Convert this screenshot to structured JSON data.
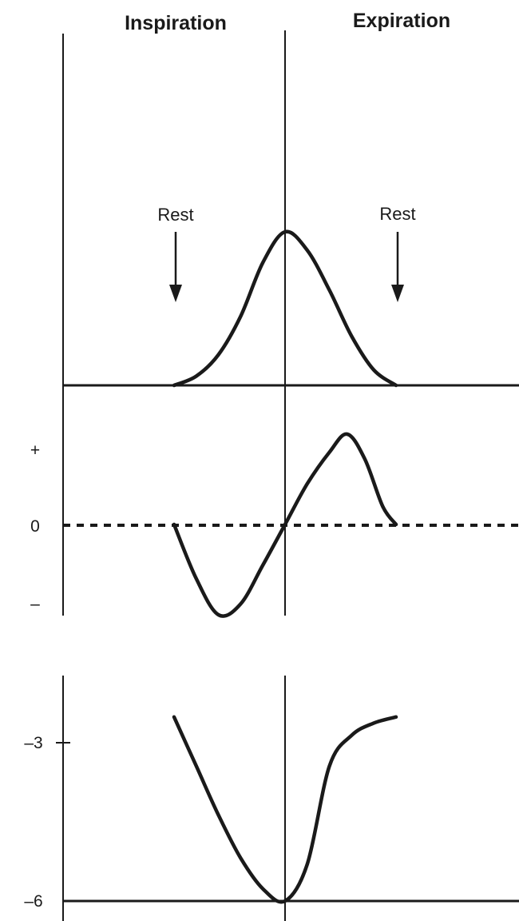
{
  "header": {
    "left": "Inspiration",
    "right": "Expiration"
  },
  "chart_data": [
    {
      "type": "line",
      "title": "",
      "annotations": [
        {
          "text": "Rest",
          "x": -0.5
        },
        {
          "text": "Rest",
          "x": 0.5
        }
      ],
      "xlim": [
        -1,
        1
      ],
      "ylim": [
        0,
        1
      ],
      "grid": false,
      "series": [
        {
          "x": [
            -0.5,
            -0.4,
            -0.3,
            -0.2,
            -0.1,
            0,
            0.1,
            0.2,
            0.3,
            0.4,
            0.5
          ],
          "values": [
            0,
            0.06,
            0.2,
            0.45,
            0.8,
            1,
            0.88,
            0.62,
            0.32,
            0.1,
            0
          ]
        }
      ]
    },
    {
      "type": "line",
      "title": "",
      "ytick_labels": [
        "+",
        "0",
        "–"
      ],
      "xlim": [
        -1,
        1
      ],
      "ylim": [
        -1,
        1
      ],
      "grid": false,
      "reference_line": {
        "y": 0,
        "style": "dashed"
      },
      "series": [
        {
          "x": [
            -0.5,
            -0.4,
            -0.3,
            -0.2,
            -0.1,
            0,
            0.1,
            0.2,
            0.28,
            0.36,
            0.44,
            0.5
          ],
          "values": [
            0,
            -0.6,
            -1,
            -0.88,
            -0.45,
            0,
            0.45,
            0.8,
            1,
            0.72,
            0.2,
            0
          ]
        }
      ]
    },
    {
      "type": "line",
      "title": "",
      "yticks": [
        "–3",
        "–6"
      ],
      "xlim": [
        -1,
        1
      ],
      "ylim": [
        -6,
        -2
      ],
      "grid": false,
      "series": [
        {
          "x": [
            -0.5,
            -0.4,
            -0.3,
            -0.2,
            -0.1,
            0,
            0.1,
            0.2,
            0.3,
            0.4,
            0.5
          ],
          "values": [
            -3,
            -3.8,
            -4.6,
            -5.3,
            -5.8,
            -6,
            -5.4,
            -3.8,
            -3.3,
            -3.1,
            -3
          ]
        }
      ]
    }
  ]
}
